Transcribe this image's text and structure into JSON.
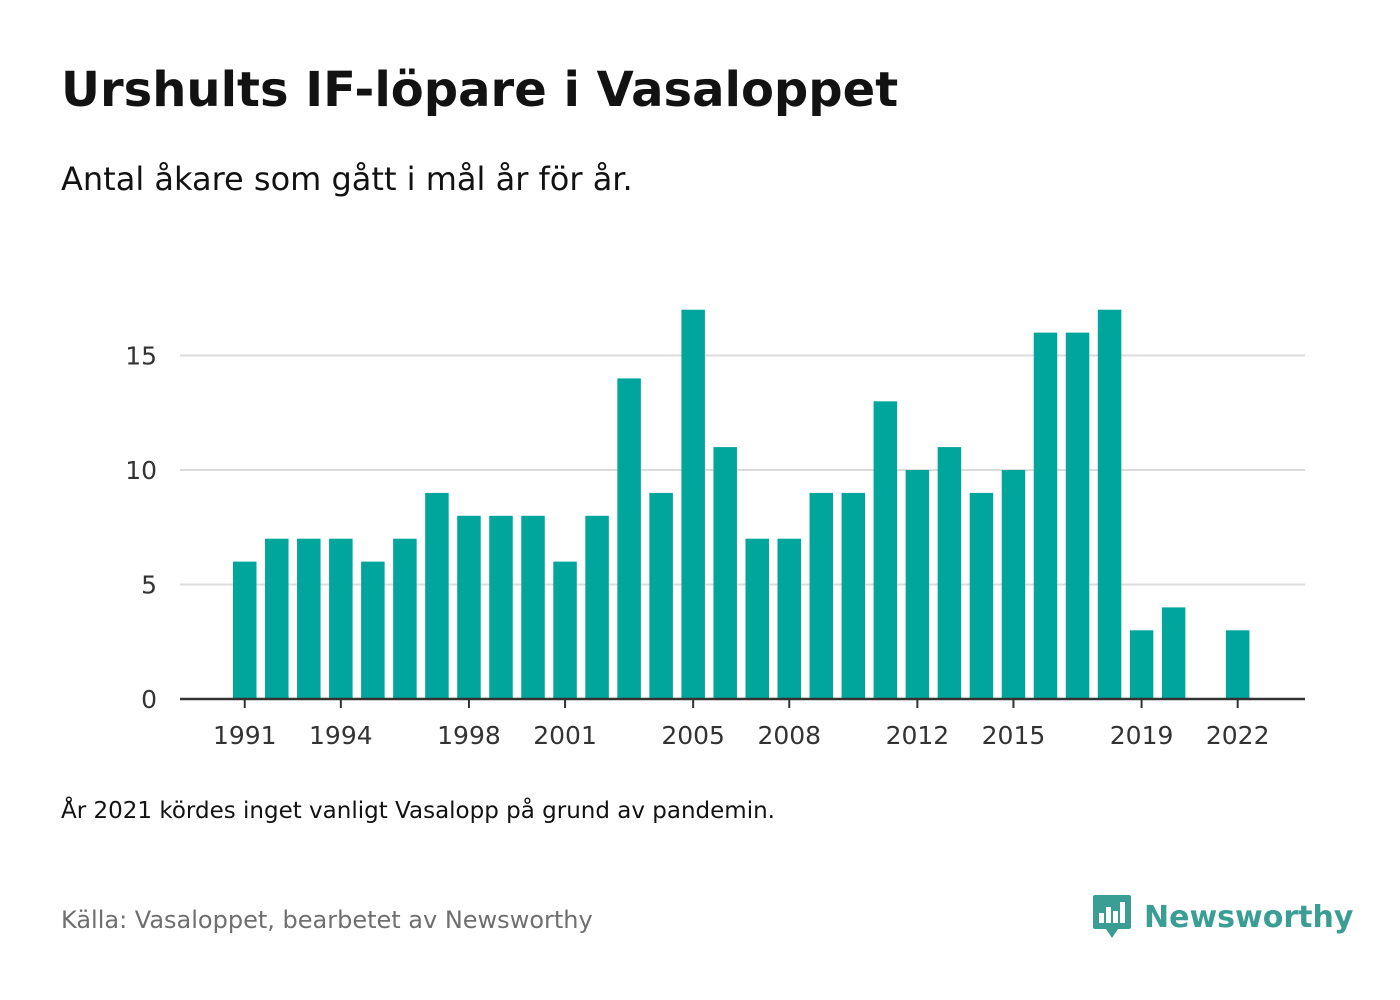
{
  "header": {
    "title": "Urshults IF-löpare i Vasaloppet",
    "subtitle": "Antal åkare som gått i mål år för år."
  },
  "footer": {
    "note": "År 2021 kördes inget vanligt Vasalopp på grund av pandemin.",
    "source": "Källa: Vasaloppet, bearbetet av Newsworthy",
    "brand": "Newsworthy"
  },
  "colors": {
    "bar": "#00a69c",
    "grid": "#dcdcdc",
    "axis": "#333333",
    "text": "#121212",
    "muted": "#6f6f6f",
    "brand": "#3a9e95"
  },
  "icons": {
    "brand_logo": "bar-chart-speech-bubble-icon"
  },
  "chart_data": {
    "type": "bar",
    "categories": [
      1991,
      1992,
      1993,
      1994,
      1995,
      1996,
      1997,
      1998,
      1999,
      2000,
      2001,
      2002,
      2003,
      2004,
      2005,
      2006,
      2007,
      2008,
      2009,
      2010,
      2011,
      2012,
      2013,
      2014,
      2015,
      2016,
      2017,
      2018,
      2019,
      2020,
      2021,
      2022
    ],
    "values": [
      6,
      7,
      7,
      7,
      6,
      7,
      9,
      8,
      8,
      8,
      6,
      8,
      14,
      9,
      17,
      11,
      7,
      7,
      9,
      9,
      13,
      10,
      11,
      9,
      10,
      16,
      16,
      17,
      3,
      4,
      null,
      3
    ],
    "x_tick_labels": [
      "1991",
      "1994",
      "1998",
      "2001",
      "2005",
      "2008",
      "2012",
      "2015",
      "2019",
      "2022"
    ],
    "y_ticks": [
      0,
      5,
      10,
      15
    ],
    "ylim": [
      0,
      17
    ],
    "xlabel": "",
    "ylabel": "",
    "grid": true,
    "legend": "none"
  }
}
